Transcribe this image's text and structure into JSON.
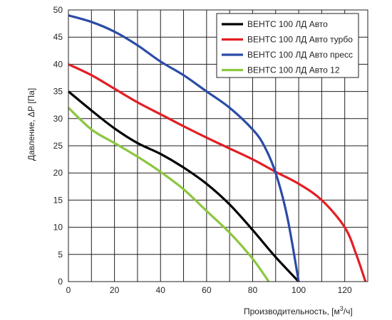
{
  "chart_data": {
    "type": "line",
    "xlabel": "Производительность, [м",
    "xlabel_sup": "3",
    "xlabel_tail": "/ч]",
    "ylabel": "Давление, ΔP [Па]",
    "xlim": [
      0,
      130
    ],
    "ylim": [
      0,
      50
    ],
    "x_ticks": [
      0,
      20,
      40,
      60,
      80,
      100,
      120
    ],
    "x_minor_step": 10,
    "y_ticks": [
      0,
      5,
      10,
      15,
      20,
      25,
      30,
      35,
      40,
      45,
      50
    ],
    "grid": true,
    "legend_position": "top-right",
    "series": [
      {
        "name": "ВЕНТС 100 ЛД Авто",
        "color": "#000000",
        "x": [
          0,
          10,
          20,
          30,
          40,
          50,
          60,
          70,
          80,
          90,
          100
        ],
        "y": [
          35,
          31.5,
          28.2,
          25.5,
          23.5,
          21,
          18,
          14.2,
          9.5,
          4.5,
          0
        ]
      },
      {
        "name": "ВЕНТС 100 ЛД Авто турбо",
        "color": "#e31e24",
        "x": [
          0,
          10,
          20,
          30,
          40,
          50,
          60,
          70,
          80,
          90,
          100,
          110,
          120,
          125,
          129
        ],
        "y": [
          40,
          38,
          35.5,
          33,
          30.8,
          28.6,
          26.5,
          24.5,
          22.5,
          20.2,
          18,
          15,
          10,
          5,
          0
        ]
      },
      {
        "name": "ВЕНТС 100 ЛД Авто пресс",
        "color": "#2b4ba8",
        "x": [
          0,
          10,
          20,
          30,
          40,
          50,
          60,
          70,
          80,
          85,
          90,
          95,
          100
        ],
        "y": [
          49,
          47.8,
          46,
          43.5,
          40.5,
          38,
          35,
          32,
          28,
          25,
          20,
          12,
          0
        ]
      },
      {
        "name": "ВЕНТС 100 ЛД Авто 12",
        "color": "#8cc63f",
        "x": [
          0,
          10,
          20,
          30,
          40,
          50,
          60,
          70,
          80,
          87
        ],
        "y": [
          32,
          28,
          25.5,
          23,
          20.2,
          17,
          13,
          9,
          4.2,
          0
        ]
      }
    ]
  }
}
